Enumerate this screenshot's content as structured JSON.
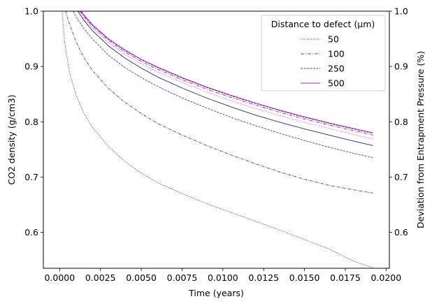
{
  "chart_data": {
    "type": "line",
    "xlabel": "Time (years)",
    "ylabel": "CO2 density (g/cm3)",
    "ylabel_right": "Deviation from Entrapment Pressure (%)",
    "xlim": [
      -0.001,
      0.0202
    ],
    "ylim": [
      0.535,
      1.0
    ],
    "xticks": [
      0.0,
      0.0025,
      0.005,
      0.0075,
      0.01,
      0.0125,
      0.015,
      0.0175,
      0.02
    ],
    "xtick_labels": [
      "0.0000",
      "0.0025",
      "0.0050",
      "0.0075",
      "0.0100",
      "0.0125",
      "0.0150",
      "0.0175",
      "0.0200"
    ],
    "yticks": [
      0.6,
      0.7,
      0.8,
      0.9,
      1.0
    ],
    "ytick_labels": [
      "0.6",
      "0.7",
      "0.8",
      "0.9",
      "1.0"
    ],
    "yticks_right": [
      0.6,
      0.7,
      0.8,
      0.9,
      1.0
    ],
    "ytick_labels_right": [
      "0.6",
      "0.7",
      "0.8",
      "0.9",
      "1.0"
    ],
    "grid": false,
    "legend": {
      "title": "Distance to defect (µm)",
      "placement": "top-right",
      "entries": [
        {
          "label": "50",
          "color": "#23238c",
          "dash": "1,1.5"
        },
        {
          "label": "100",
          "color": "#8c2b9e",
          "dash": "5,2,1,2"
        },
        {
          "label": "250",
          "color": "#6a2aa0",
          "dash": "3,1.5"
        },
        {
          "label": "500",
          "color": "#a02aa6",
          "dash": ""
        }
      ]
    },
    "series": [
      {
        "color": "#23238c",
        "dash": "1,1.5",
        "points": [
          [
            0.0001,
            1.02
          ],
          [
            0.0003,
            0.945
          ],
          [
            0.0006,
            0.89
          ],
          [
            0.001,
            0.848
          ],
          [
            0.0015,
            0.815
          ],
          [
            0.002,
            0.79
          ],
          [
            0.003,
            0.755
          ],
          [
            0.004,
            0.728
          ],
          [
            0.005,
            0.707
          ],
          [
            0.006,
            0.69
          ],
          [
            0.0075,
            0.67
          ],
          [
            0.009,
            0.652
          ],
          [
            0.0105,
            0.636
          ],
          [
            0.012,
            0.62
          ],
          [
            0.0135,
            0.604
          ],
          [
            0.015,
            0.587
          ],
          [
            0.0165,
            0.57
          ],
          [
            0.018,
            0.548
          ],
          [
            0.0192,
            0.536
          ]
        ]
      },
      {
        "color": "#3a35a8",
        "dash": "4,1.5,1,1.5",
        "points": [
          [
            0.0002,
            1.02
          ],
          [
            0.0005,
            0.985
          ],
          [
            0.001,
            0.945
          ],
          [
            0.0015,
            0.915
          ],
          [
            0.002,
            0.893
          ],
          [
            0.003,
            0.86
          ],
          [
            0.004,
            0.835
          ],
          [
            0.005,
            0.815
          ],
          [
            0.006,
            0.797
          ],
          [
            0.0075,
            0.776
          ],
          [
            0.009,
            0.757
          ],
          [
            0.0105,
            0.74
          ],
          [
            0.012,
            0.724
          ],
          [
            0.0135,
            0.709
          ],
          [
            0.015,
            0.696
          ],
          [
            0.0165,
            0.685
          ],
          [
            0.018,
            0.677
          ],
          [
            0.0192,
            0.671
          ]
        ]
      },
      {
        "color": "#4a3cb0",
        "dash": "3,1.5",
        "points": [
          [
            0.0005,
            1.02
          ],
          [
            0.001,
            0.99
          ],
          [
            0.0015,
            0.968
          ],
          [
            0.002,
            0.95
          ],
          [
            0.003,
            0.92
          ],
          [
            0.004,
            0.898
          ],
          [
            0.005,
            0.88
          ],
          [
            0.006,
            0.864
          ],
          [
            0.0075,
            0.843
          ],
          [
            0.009,
            0.825
          ],
          [
            0.0105,
            0.808
          ],
          [
            0.012,
            0.793
          ],
          [
            0.0135,
            0.779
          ],
          [
            0.015,
            0.766
          ],
          [
            0.0165,
            0.754
          ],
          [
            0.018,
            0.743
          ],
          [
            0.0192,
            0.735
          ]
        ]
      },
      {
        "color": "#2b2b7a",
        "dash": "",
        "points": [
          [
            0.0007,
            1.02
          ],
          [
            0.001,
            1.005
          ],
          [
            0.0015,
            0.983
          ],
          [
            0.002,
            0.965
          ],
          [
            0.003,
            0.937
          ],
          [
            0.004,
            0.915
          ],
          [
            0.005,
            0.897
          ],
          [
            0.006,
            0.881
          ],
          [
            0.0075,
            0.861
          ],
          [
            0.009,
            0.843
          ],
          [
            0.0105,
            0.827
          ],
          [
            0.012,
            0.812
          ],
          [
            0.0135,
            0.799
          ],
          [
            0.015,
            0.787
          ],
          [
            0.0165,
            0.776
          ],
          [
            0.018,
            0.765
          ],
          [
            0.0192,
            0.757
          ]
        ]
      },
      {
        "color": "#c04ab0",
        "dash": "1,1.5",
        "points": [
          [
            0.0007,
            1.02
          ],
          [
            0.001,
            1.008
          ],
          [
            0.0015,
            0.987
          ],
          [
            0.002,
            0.97
          ],
          [
            0.003,
            0.943
          ],
          [
            0.004,
            0.922
          ],
          [
            0.005,
            0.905
          ],
          [
            0.006,
            0.89
          ],
          [
            0.0075,
            0.871
          ],
          [
            0.009,
            0.854
          ],
          [
            0.0105,
            0.838
          ],
          [
            0.012,
            0.824
          ],
          [
            0.0135,
            0.811
          ],
          [
            0.015,
            0.799
          ],
          [
            0.0165,
            0.788
          ],
          [
            0.018,
            0.777
          ],
          [
            0.0192,
            0.769
          ]
        ]
      },
      {
        "color": "#8c2b9e",
        "dash": "5,2,1,2",
        "points": [
          [
            0.0007,
            1.02
          ],
          [
            0.001,
            1.01
          ],
          [
            0.0015,
            0.99
          ],
          [
            0.002,
            0.973
          ],
          [
            0.003,
            0.947
          ],
          [
            0.004,
            0.926
          ],
          [
            0.005,
            0.909
          ],
          [
            0.006,
            0.895
          ],
          [
            0.0075,
            0.876
          ],
          [
            0.009,
            0.859
          ],
          [
            0.0105,
            0.844
          ],
          [
            0.012,
            0.83
          ],
          [
            0.0135,
            0.817
          ],
          [
            0.015,
            0.805
          ],
          [
            0.0165,
            0.794
          ],
          [
            0.018,
            0.784
          ],
          [
            0.0192,
            0.776
          ]
        ]
      },
      {
        "color": "#6a2aa0",
        "dash": "3,1.5",
        "points": [
          [
            0.0007,
            1.02
          ],
          [
            0.001,
            1.012
          ],
          [
            0.0015,
            0.992
          ],
          [
            0.002,
            0.975
          ],
          [
            0.003,
            0.949
          ],
          [
            0.004,
            0.929
          ],
          [
            0.005,
            0.912
          ],
          [
            0.006,
            0.898
          ],
          [
            0.0075,
            0.879
          ],
          [
            0.009,
            0.862
          ],
          [
            0.0105,
            0.847
          ],
          [
            0.012,
            0.833
          ],
          [
            0.0135,
            0.82
          ],
          [
            0.015,
            0.808
          ],
          [
            0.0165,
            0.797
          ],
          [
            0.018,
            0.787
          ],
          [
            0.0192,
            0.779
          ]
        ]
      },
      {
        "color": "#a02aa6",
        "dash": "",
        "points": [
          [
            0.0007,
            1.02
          ],
          [
            0.001,
            1.013
          ],
          [
            0.0015,
            0.993
          ],
          [
            0.002,
            0.976
          ],
          [
            0.003,
            0.95
          ],
          [
            0.004,
            0.93
          ],
          [
            0.005,
            0.913
          ],
          [
            0.006,
            0.899
          ],
          [
            0.0075,
            0.88
          ],
          [
            0.009,
            0.863
          ],
          [
            0.0105,
            0.848
          ],
          [
            0.012,
            0.834
          ],
          [
            0.0135,
            0.821
          ],
          [
            0.015,
            0.809
          ],
          [
            0.0165,
            0.798
          ],
          [
            0.018,
            0.788
          ],
          [
            0.0192,
            0.78
          ]
        ]
      }
    ]
  }
}
